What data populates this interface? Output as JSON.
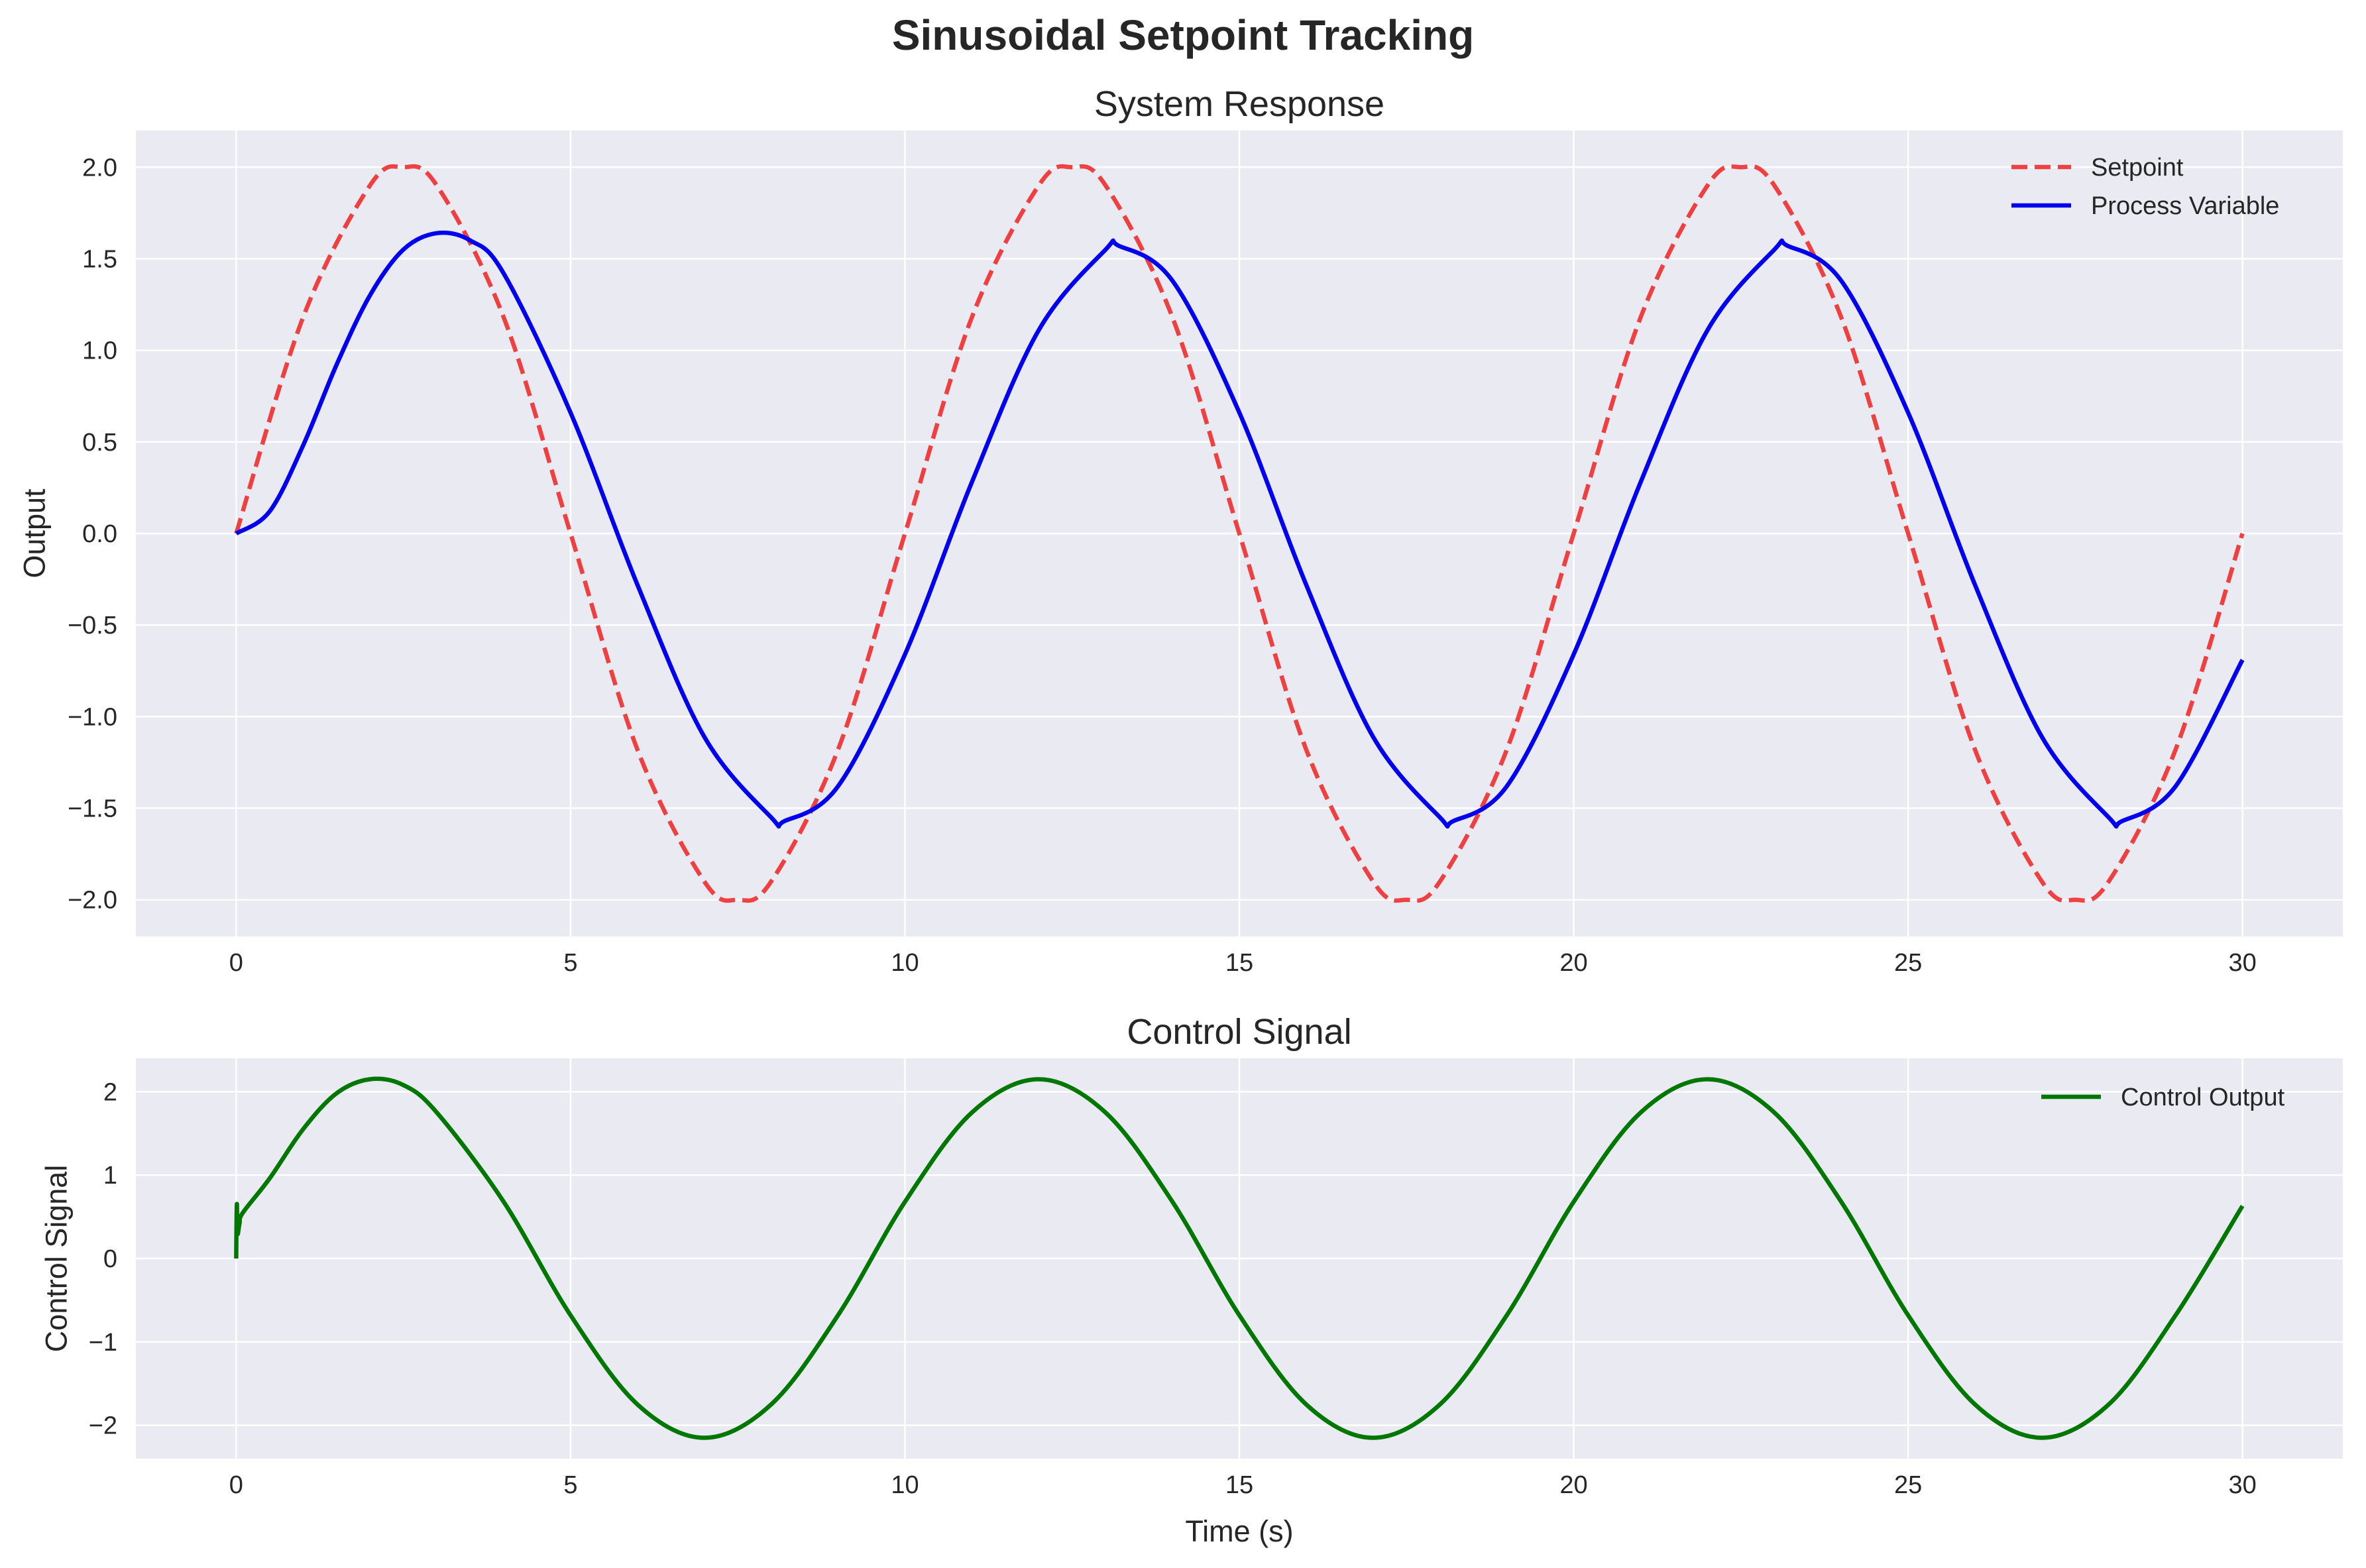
{
  "figure": {
    "suptitle": "Sinusoidal Setpoint Tracking"
  },
  "chart_data": [
    {
      "type": "line",
      "title": "System Response",
      "xlabel": "",
      "ylabel": "Output",
      "xlim": [
        -1.5,
        31.5
      ],
      "ylim": [
        -2.2,
        2.2
      ],
      "xticks": [
        0,
        5,
        10,
        15,
        20,
        25,
        30
      ],
      "yticks": [
        2.0,
        1.5,
        1.0,
        0.5,
        0.0,
        -0.5,
        -1.0,
        -1.5,
        -2.0
      ],
      "ytick_labels": [
        "2.0",
        "1.5",
        "1.0",
        "0.5",
        "0.0",
        "−0.5",
        "−1.0",
        "−1.5",
        "−2.0"
      ],
      "grid": true,
      "legend": "top-right",
      "series": [
        {
          "name": "Setpoint",
          "color": "#ee2222",
          "style": "dashed",
          "x": [
            0,
            1,
            2,
            2.5,
            3,
            4,
            5,
            6,
            7,
            7.5,
            8,
            9,
            10,
            11,
            12,
            12.5,
            13,
            14,
            15,
            16,
            17,
            17.5,
            18,
            19,
            20,
            21,
            22,
            22.5,
            23,
            24,
            25,
            26,
            27,
            27.5,
            28,
            29,
            30
          ],
          "y": [
            0.0,
            1.18,
            1.9,
            2.0,
            1.9,
            1.18,
            0.0,
            -1.18,
            -1.9,
            -2.0,
            -1.9,
            -1.18,
            0.0,
            1.18,
            1.9,
            2.0,
            1.9,
            1.18,
            0.0,
            -1.18,
            -1.9,
            -2.0,
            -1.9,
            -1.18,
            0.0,
            1.18,
            1.9,
            2.0,
            1.9,
            1.18,
            0.0,
            -1.18,
            -1.9,
            -2.0,
            -1.9,
            -1.18,
            0.0
          ]
        },
        {
          "name": "Process Variable",
          "color": "#0000ee",
          "style": "solid",
          "x": [
            0,
            0.5,
            1,
            1.5,
            2,
            2.5,
            3,
            3.5,
            4,
            5,
            6,
            7,
            8,
            8.2,
            9,
            10,
            11,
            12,
            13,
            13.2,
            14,
            15,
            16,
            17,
            18,
            18.2,
            19,
            20,
            21,
            22,
            23,
            23.2,
            24,
            25,
            26,
            27,
            28,
            28.2,
            29,
            30
          ],
          "y": [
            0.0,
            0.12,
            0.48,
            0.92,
            1.3,
            1.55,
            1.64,
            1.6,
            1.42,
            0.66,
            -0.28,
            -1.11,
            -1.55,
            -1.57,
            -1.38,
            -0.66,
            0.28,
            1.11,
            1.55,
            1.57,
            1.38,
            0.66,
            -0.28,
            -1.11,
            -1.55,
            -1.57,
            -1.38,
            -0.66,
            0.28,
            1.11,
            1.55,
            1.57,
            1.38,
            0.66,
            -0.28,
            -1.11,
            -1.55,
            -1.57,
            -1.38,
            -0.69
          ]
        }
      ]
    },
    {
      "type": "line",
      "title": "Control Signal",
      "xlabel": "Time (s)",
      "ylabel": "Control Signal",
      "xlim": [
        -1.5,
        31.5
      ],
      "ylim": [
        -2.4,
        2.4
      ],
      "xticks": [
        0,
        5,
        10,
        15,
        20,
        25,
        30
      ],
      "yticks": [
        2,
        1,
        0,
        -1,
        -2
      ],
      "ytick_labels": [
        "2",
        "1",
        "0",
        "−1",
        "−2"
      ],
      "grid": true,
      "legend": "top-right",
      "series": [
        {
          "name": "Control Output",
          "color": "#007700",
          "style": "solid",
          "x": [
            0,
            0.01,
            0.02,
            0.05,
            0.1,
            0.5,
            1,
            1.5,
            2,
            2.5,
            3,
            4,
            5,
            6,
            7,
            8,
            9,
            10,
            11,
            12,
            13,
            14,
            15,
            16,
            17,
            18,
            19,
            20,
            21,
            22,
            23,
            24,
            25,
            26,
            27,
            28,
            29,
            30
          ],
          "y": [
            0.0,
            0.65,
            0.3,
            0.42,
            0.55,
            0.96,
            1.55,
            1.98,
            2.15,
            2.08,
            1.75,
            0.68,
            -0.68,
            -1.75,
            -2.15,
            -1.75,
            -0.68,
            0.68,
            1.75,
            2.15,
            1.75,
            0.68,
            -0.68,
            -1.75,
            -2.15,
            -1.75,
            -0.68,
            0.68,
            1.75,
            2.15,
            1.75,
            0.68,
            -0.68,
            -1.75,
            -2.15,
            -1.75,
            -0.68,
            0.63
          ]
        }
      ]
    }
  ]
}
